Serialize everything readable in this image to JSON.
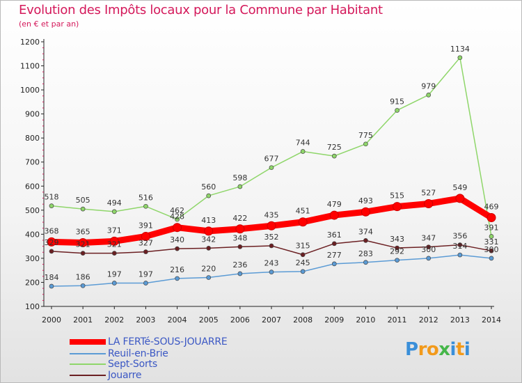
{
  "title": "Evolution des Impôts locaux pour la Commune par Habitant",
  "subtitle": "(en € et par an)",
  "brand": {
    "letters": [
      "P",
      "r",
      "o",
      "x",
      "i",
      "t",
      "i"
    ],
    "colors": [
      "#3a8fd9",
      "#f29a1b",
      "#f29a1b",
      "#45b649",
      "#3a8fd9",
      "#f29a1b",
      "#3a8fd9"
    ]
  },
  "chart_data": {
    "type": "line",
    "x": [
      "2000",
      "2001",
      "2002",
      "2003",
      "2004",
      "2005",
      "2006",
      "2007",
      "2008",
      "2009",
      "2010",
      "2011",
      "2012",
      "2013",
      "2014"
    ],
    "ylim": [
      100,
      1200
    ],
    "yticks": [
      100,
      200,
      300,
      400,
      500,
      600,
      700,
      800,
      900,
      1000,
      1100,
      1200
    ],
    "grid": false,
    "legend_position": "bottom-left",
    "series": [
      {
        "name": "LA FERTé-SOUS-JOUARRE",
        "color": "#ff0000",
        "values": [
          368,
          365,
          371,
          391,
          428,
          413,
          422,
          435,
          451,
          479,
          493,
          515,
          527,
          549,
          469
        ]
      },
      {
        "name": "Reuil-en-Brie",
        "color": "#5b9bd5",
        "values": [
          184,
          186,
          197,
          197,
          216,
          220,
          236,
          243,
          245,
          277,
          283,
          292,
          300,
          314,
          300
        ]
      },
      {
        "name": "Sept-Sorts",
        "color": "#8fd66a",
        "values": [
          518,
          505,
          494,
          516,
          462,
          560,
          598,
          677,
          744,
          725,
          775,
          915,
          979,
          1134,
          391
        ]
      },
      {
        "name": "Jouarre",
        "color": "#6b1f22",
        "values": [
          329,
          321,
          321,
          327,
          340,
          342,
          348,
          352,
          315,
          361,
          374,
          343,
          347,
          356,
          331
        ]
      }
    ]
  }
}
